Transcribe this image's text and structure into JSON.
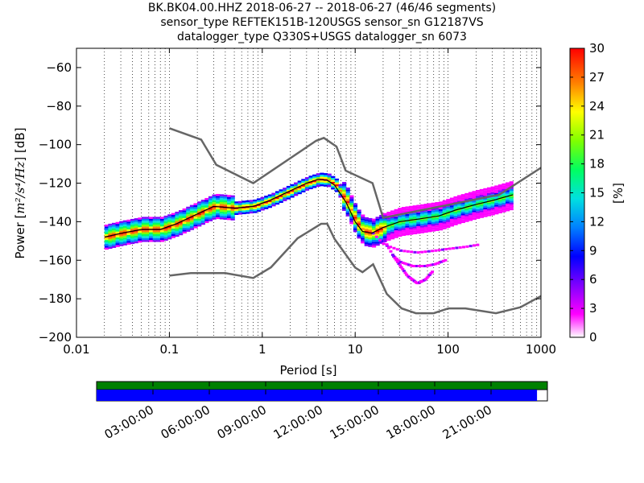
{
  "chart_data": {
    "type": "heatmap",
    "title_lines": [
      "BK.BK04.00.HHZ   2018-06-27 -- 2018-06-27  (46/46 segments)",
      "sensor_type REFTEK151B-120USGS sensor_sn G12187VS",
      "datalogger_type Q330S+USGS datalogger_sn 6073"
    ],
    "xlabel": "Period [s]",
    "ylabel_prefix": "Power [",
    "ylabel_units": "m²/s⁴/Hz",
    "ylabel_suffix": "] [dB]",
    "xscale": "log",
    "xlim": [
      0.01,
      1000
    ],
    "ylim": [
      -200,
      -50
    ],
    "x_ticks": [
      0.01,
      0.1,
      1,
      10,
      100,
      1000
    ],
    "x_tick_labels": [
      "0.01",
      "0.1",
      "1",
      "10",
      "100",
      "1000"
    ],
    "y_ticks": [
      -200,
      -180,
      -160,
      -140,
      -120,
      -100,
      -80,
      -60
    ],
    "y_tick_labels": [
      "−200",
      "−180",
      "−160",
      "−140",
      "−120",
      "−100",
      "−80",
      "−60"
    ],
    "colorbar": {
      "label": "[%]",
      "range": [
        0,
        30
      ],
      "ticks": [
        0,
        3,
        6,
        9,
        12,
        15,
        18,
        21,
        24,
        27,
        30
      ],
      "tick_labels": [
        "0",
        "3",
        "6",
        "9",
        "12",
        "15",
        "18",
        "21",
        "24",
        "27",
        "30"
      ],
      "colors": [
        "#ffffff",
        "#ff00ff",
        "#8000ff",
        "#0000ff",
        "#0080ff",
        "#00e0e0",
        "#00ff60",
        "#80ff00",
        "#ffff00",
        "#ff8000",
        "#ff0000"
      ]
    },
    "nhnm": {
      "name": "NHNM",
      "x": [
        0.1,
        0.22,
        0.32,
        0.8,
        3.8,
        4.6,
        6.3,
        7.9,
        15.4,
        20,
        354.8,
        1000
      ],
      "y": [
        -91.5,
        -97.4,
        -110.5,
        -120,
        -98,
        -96.5,
        -101,
        -113.5,
        -120,
        -138,
        -126,
        -112
      ]
    },
    "nlnm": {
      "name": "NLNM",
      "x": [
        0.1,
        0.17,
        0.4,
        0.8,
        1.24,
        2.4,
        4.3,
        5,
        6,
        10,
        12,
        15.6,
        21.9,
        31.6,
        45,
        70,
        101,
        154,
        328,
        600,
        1000
      ],
      "y": [
        -168,
        -166.7,
        -166.7,
        -169.2,
        -163.7,
        -148.6,
        -141.1,
        -141.1,
        -149,
        -163.8,
        -166.2,
        -162.1,
        -177.5,
        -185,
        -187.5,
        -187.5,
        -185,
        -185,
        -187.5,
        -184.4,
        -178.6
      ]
    },
    "mode_curve": {
      "x": [
        0.02,
        0.03,
        0.05,
        0.08,
        0.12,
        0.2,
        0.3,
        0.5,
        0.8,
        1.2,
        2,
        3,
        4,
        5,
        6,
        8,
        10,
        12,
        15,
        20,
        30,
        50,
        80,
        120,
        200,
        300,
        500
      ],
      "y": [
        -148,
        -146,
        -144,
        -144,
        -141,
        -136,
        -132,
        -133,
        -132,
        -129,
        -124,
        -120,
        -118,
        -118.5,
        -121,
        -130,
        -140,
        -145,
        -146,
        -143,
        -140,
        -138.5,
        -137,
        -134,
        -131,
        -129,
        -126
      ]
    },
    "low_tail": {
      "x": [
        15,
        20,
        30,
        45,
        70,
        100,
        150,
        200
      ],
      "y": [
        -146,
        -152,
        -155,
        -156,
        -155,
        -154,
        -153,
        -152
      ]
    },
    "low_tail_2": {
      "x": [
        20,
        25,
        30,
        40,
        55,
        70,
        90
      ],
      "y": [
        -150,
        -158,
        -161,
        -163,
        -163,
        -162,
        -160
      ]
    },
    "low_tail_3": {
      "x": [
        25,
        35,
        45,
        55,
        65
      ],
      "y": [
        -158,
        -168,
        -172,
        -170,
        -166
      ]
    },
    "availability": {
      "timeline_labels": [
        "03:00:00",
        "06:00:00",
        "09:00:00",
        "12:00:00",
        "15:00:00",
        "18:00:00",
        "21:00:00"
      ],
      "coverage_fraction": 0.977,
      "gap_color": "#008000",
      "data_color": "#0000ff"
    }
  }
}
